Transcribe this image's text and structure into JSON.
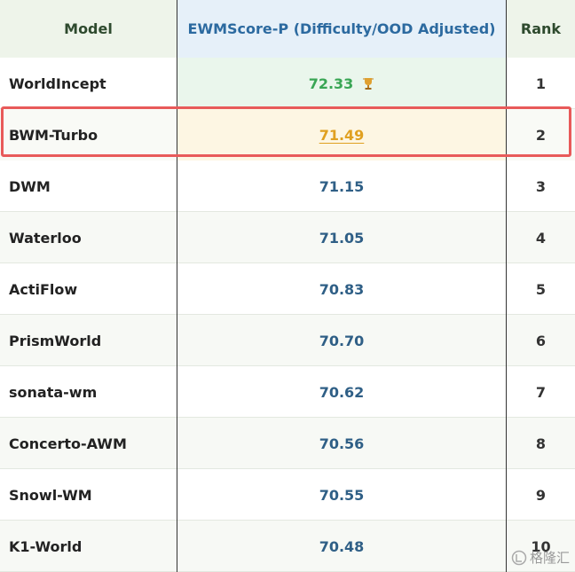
{
  "table": {
    "header": [
      "Model",
      "EWMScore-P (Difficulty/OOD Adjusted)",
      "Rank"
    ],
    "rows": [
      [
        "WorldIncept",
        "72.33",
        1
      ],
      [
        "BWM-Turbo",
        "71.49",
        2
      ],
      [
        "DWM",
        "71.15",
        3
      ],
      [
        "Waterloo",
        "71.05",
        4
      ],
      [
        "ActiFlow",
        "70.83",
        5
      ],
      [
        "PrismWorld",
        "70.70",
        6
      ],
      [
        "sonata-wm",
        "70.62",
        7
      ],
      [
        "Concerto-AWM",
        "70.56",
        8
      ],
      [
        "Snowl-WM",
        "70.55",
        9
      ],
      [
        "K1-World",
        "70.48",
        10
      ]
    ]
  },
  "watermark": "格隆汇"
}
